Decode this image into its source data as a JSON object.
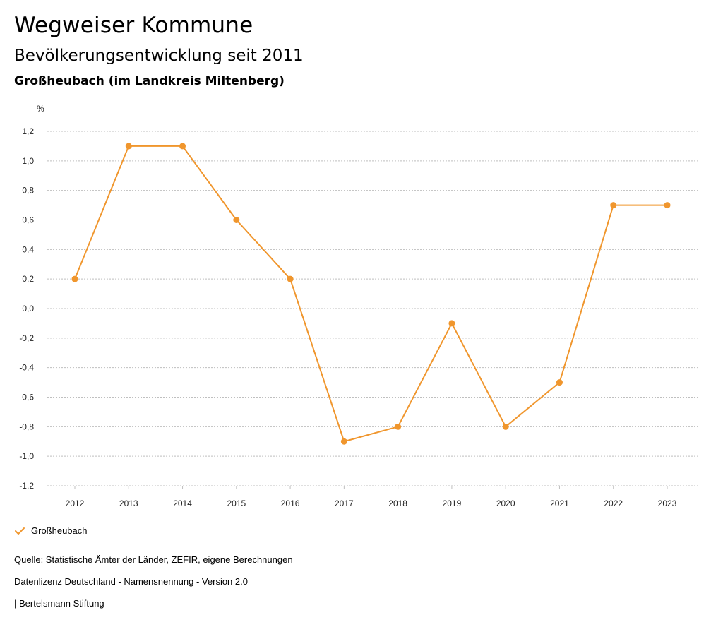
{
  "header": {
    "title": "Wegweiser Kommune",
    "subtitle": "Bevölkerungsentwicklung seit 2011",
    "region": "Großheubach (im Landkreis Miltenberg)"
  },
  "colors": {
    "series": "#f0962d",
    "grid": "#bfbfbf",
    "axis_text": "#222222"
  },
  "chart_data": {
    "type": "line",
    "title": "Bevölkerungsentwicklung seit 2011",
    "ylabel": "%",
    "xlabel": "",
    "categories": [
      "2012",
      "2013",
      "2014",
      "2015",
      "2016",
      "2017",
      "2018",
      "2019",
      "2020",
      "2021",
      "2022",
      "2023"
    ],
    "series": [
      {
        "name": "Großheubach",
        "values": [
          0.2,
          1.1,
          1.1,
          0.6,
          0.2,
          -0.9,
          -0.8,
          -0.1,
          -0.8,
          -0.5,
          0.7,
          0.7
        ]
      }
    ],
    "ylim": [
      -1.2,
      1.2
    ],
    "yticks": [
      "1,2",
      "1,0",
      "0,8",
      "0,6",
      "0,4",
      "0,2",
      "0,0",
      "-0,2",
      "-0,4",
      "-0,6",
      "-0,8",
      "-1,0",
      "-1,2"
    ],
    "grid": true,
    "legend_position": "bottom-left"
  },
  "legend": {
    "label": "Großheubach",
    "icon": "check-icon"
  },
  "footer": {
    "source": "Quelle: Statistische Ämter der Länder, ZEFIR, eigene Berechnungen",
    "license": "Datenlizenz Deutschland - Namensnennung - Version 2.0",
    "publisher": "| Bertelsmann Stiftung"
  }
}
